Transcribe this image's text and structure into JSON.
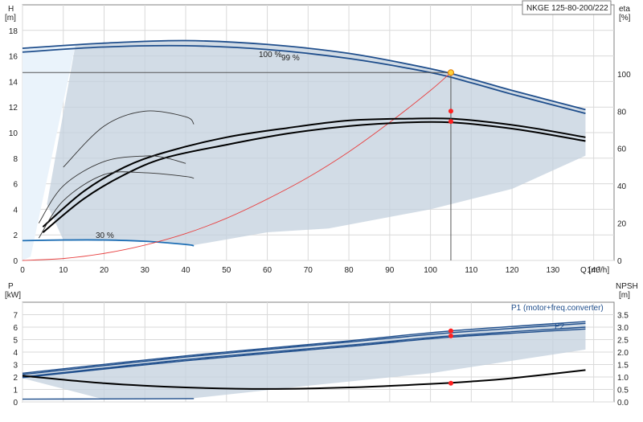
{
  "chart_data": [
    {
      "type": "line",
      "title": "NKGE 125-80-200/222",
      "y_left_label_top": "H",
      "y_left_label_unit": "[m]",
      "y_right_label_top": "eta",
      "y_right_label_unit": "[%]",
      "x_label": "Q [m³/h]",
      "xlim": [
        0,
        145
      ],
      "ylim_left": [
        0,
        20
      ],
      "ylim_right": [
        0,
        137
      ],
      "x_ticks": [
        "0",
        "10",
        "20",
        "30",
        "40",
        "50",
        "60",
        "70",
        "80",
        "90",
        "100",
        "110",
        "120",
        "130",
        "140"
      ],
      "y_left_ticks": [
        "0",
        "2",
        "4",
        "6",
        "8",
        "10",
        "12",
        "14",
        "16",
        "18"
      ],
      "y_right_ticks": [
        "0",
        "20",
        "40",
        "60",
        "80",
        "100"
      ],
      "speed_labels": [
        "100 %",
        "99 %",
        "30 %"
      ],
      "operating_point": {
        "q": 105,
        "h": 14.7,
        "eta_total": 74.5,
        "eta_pump": 80
      },
      "grid": true,
      "series": [
        {
          "name": "100 %",
          "axis": "left",
          "color": "#1f4e8c",
          "x": [
            0,
            20,
            40,
            60,
            80,
            100,
            110,
            120,
            138
          ],
          "y": [
            16.6,
            17.0,
            17.2,
            16.9,
            16.2,
            15.0,
            14.2,
            13.3,
            11.8
          ]
        },
        {
          "name": "99 %",
          "axis": "left",
          "color": "#1f4e8c",
          "x": [
            0,
            20,
            40,
            60,
            80,
            100,
            110,
            120,
            138
          ],
          "y": [
            16.3,
            16.7,
            16.8,
            16.5,
            15.8,
            14.7,
            13.9,
            13.0,
            11.5
          ]
        },
        {
          "name": "30 %",
          "axis": "left",
          "color": "#1f6fb5",
          "x": [
            0,
            10,
            20,
            30,
            40,
            42
          ],
          "y": [
            1.55,
            1.6,
            1.6,
            1.5,
            1.25,
            1.15
          ]
        },
        {
          "axis": "left",
          "color": "#e84040",
          "x": [
            0,
            10,
            20,
            30,
            40,
            50,
            60,
            70,
            80,
            90,
            100,
            105
          ],
          "y": [
            0,
            0.15,
            0.55,
            1.2,
            2.1,
            3.3,
            4.8,
            6.5,
            8.5,
            10.8,
            13.3,
            14.7
          ]
        },
        {
          "axis": "right",
          "color": "#000000",
          "x": [
            5,
            15,
            25,
            35,
            50,
            65,
            80,
            95,
            105,
            115,
            125,
            138
          ],
          "y": [
            18,
            37,
            50,
            58,
            66,
            71,
            75,
            76,
            76,
            74,
            71,
            66
          ]
        },
        {
          "axis": "right",
          "color": "#000000",
          "x": [
            5,
            15,
            25,
            35,
            50,
            65,
            80,
            95,
            105,
            115,
            125,
            138
          ],
          "y": [
            15,
            33,
            46,
            55,
            62,
            68,
            72,
            74,
            74,
            72,
            69,
            64
          ]
        },
        {
          "axis": "right",
          "color": "#333333",
          "x": [
            4,
            10,
            20,
            30,
            35,
            40
          ],
          "y": [
            20,
            40,
            53,
            56,
            55,
            52
          ]
        },
        {
          "axis": "right",
          "color": "#333333",
          "x": [
            4,
            10,
            20,
            30,
            40,
            42
          ],
          "y": [
            12,
            32,
            46,
            47,
            45,
            44
          ]
        },
        {
          "axis": "right",
          "color": "#333333",
          "x": [
            10,
            20,
            30,
            40,
            42
          ],
          "y": [
            50,
            72,
            80,
            77,
            73
          ]
        }
      ]
    },
    {
      "type": "line",
      "y_left_label_top": "P",
      "y_left_label_unit": "[kW]",
      "y_right_label_top": "NPSH",
      "y_right_label_unit": "[m]",
      "xlim": [
        0,
        145
      ],
      "ylim_left": [
        0,
        8
      ],
      "ylim_right": [
        0,
        4
      ],
      "y_left_ticks": [
        "0",
        "1",
        "2",
        "3",
        "4",
        "5",
        "6",
        "7"
      ],
      "y_right_ticks": [
        "0.0",
        "0.5",
        "1.0",
        "1.5",
        "2.0",
        "2.5",
        "3.0",
        "3.5"
      ],
      "series_labels": [
        "P1 (motor+freq.converter)",
        "P2"
      ],
      "operating_point": {
        "q": 105,
        "p1": 5.7,
        "p2": 5.3,
        "npsh": 0.75
      },
      "grid": true,
      "series": [
        {
          "name": "P1 (motor+freq.converter)",
          "axis": "left",
          "color": "#1f4e8c",
          "x": [
            0,
            40,
            80,
            105,
            138
          ],
          "y": [
            2.3,
            3.7,
            4.9,
            5.7,
            6.45
          ]
        },
        {
          "axis": "left",
          "color": "#1f4e8c",
          "x": [
            0,
            40,
            80,
            105,
            138
          ],
          "y": [
            2.2,
            3.6,
            4.8,
            5.55,
            6.3
          ]
        },
        {
          "name": "P2",
          "axis": "left",
          "color": "#1f4e8c",
          "x": [
            0,
            40,
            80,
            105,
            138
          ],
          "y": [
            2.0,
            3.4,
            4.55,
            5.3,
            6.0
          ]
        },
        {
          "axis": "left",
          "color": "#1f4e8c",
          "x": [
            0,
            40,
            80,
            105,
            138
          ],
          "y": [
            1.95,
            3.3,
            4.45,
            5.2,
            5.85
          ]
        },
        {
          "axis": "left",
          "color": "#1f4e8c",
          "x": [
            0,
            20,
            42
          ],
          "y": [
            0.22,
            0.24,
            0.26
          ]
        },
        {
          "axis": "right",
          "color": "#000000",
          "x": [
            0,
            20,
            40,
            60,
            80,
            100,
            110,
            120,
            138
          ],
          "y": [
            1.05,
            0.75,
            0.58,
            0.52,
            0.58,
            0.72,
            0.82,
            0.95,
            1.28
          ]
        }
      ]
    }
  ]
}
